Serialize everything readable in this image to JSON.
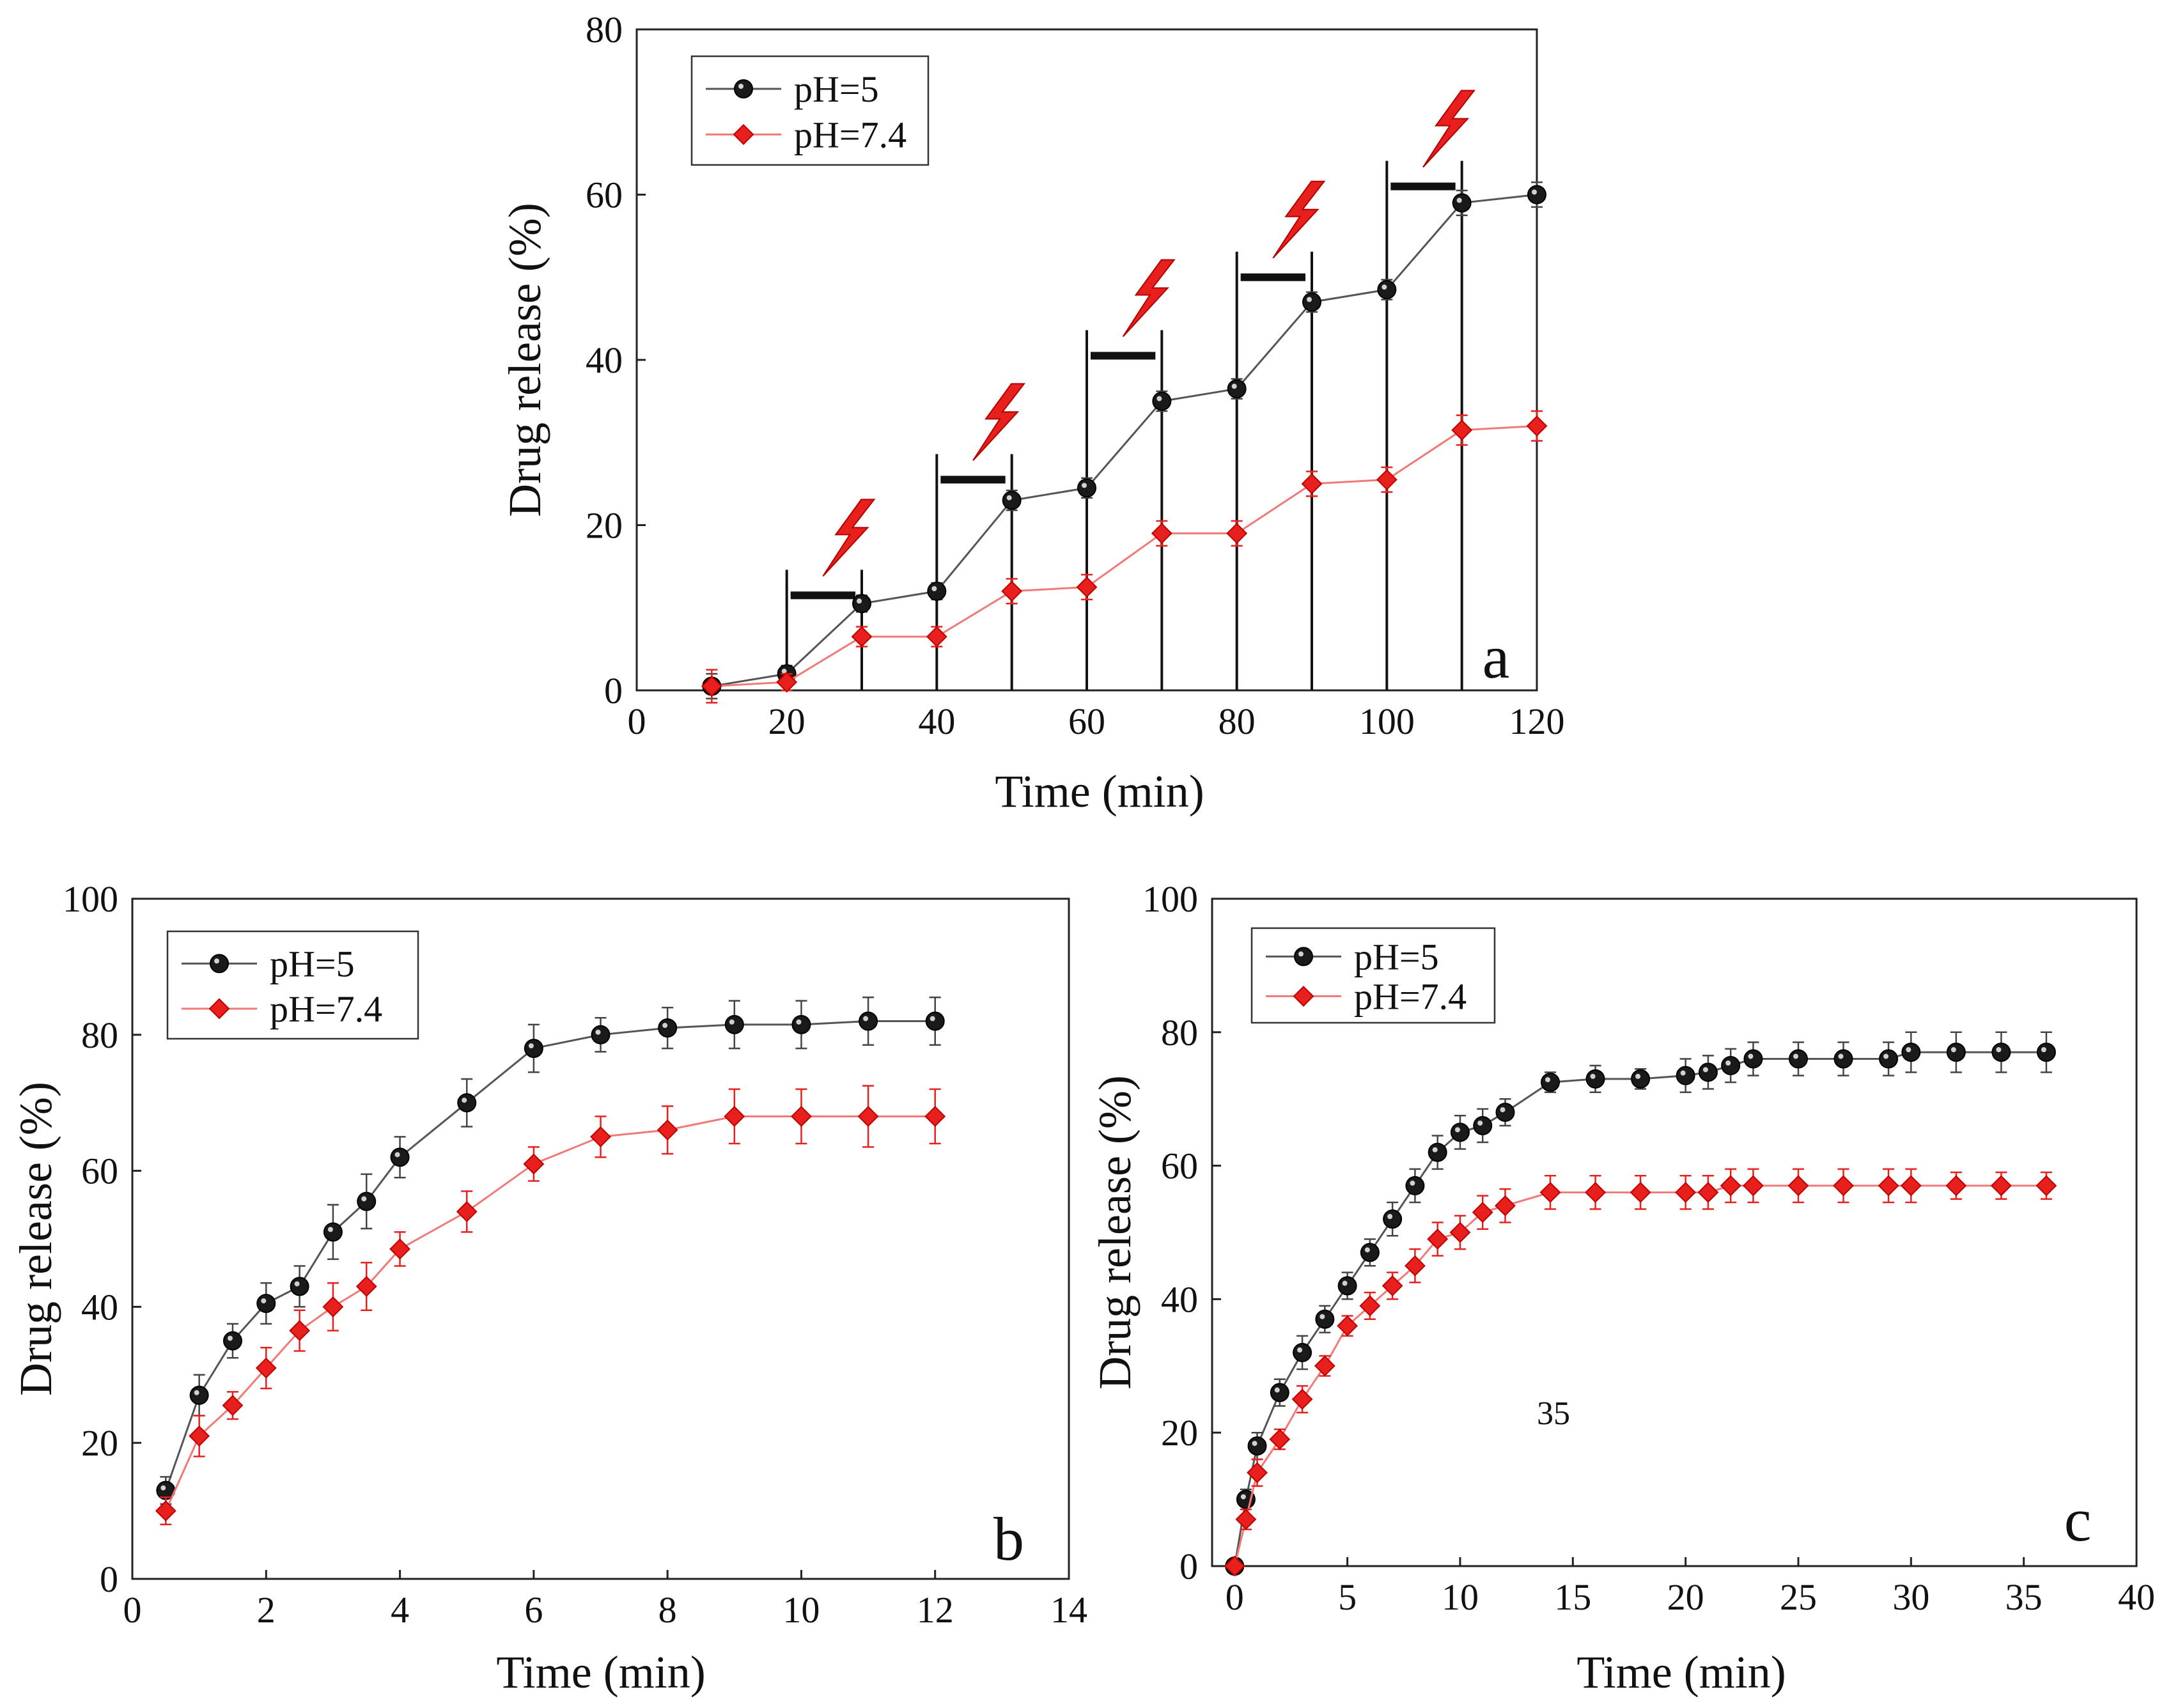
{
  "chart_data": [
    {
      "type": "line",
      "panel": "a",
      "xlabel": "Time (min)",
      "ylabel": "Drug release (%)",
      "xlim": [
        0,
        120
      ],
      "ylim": [
        0,
        80
      ],
      "xticks": [
        0,
        20,
        40,
        60,
        80,
        100,
        120
      ],
      "yticks": [
        0,
        20,
        40,
        60,
        80
      ],
      "grid": false,
      "legend_position": "top-left",
      "series": [
        {
          "name": "pH=5",
          "color": "#1a1a1a",
          "marker": "circle",
          "x": [
            10,
            20,
            30,
            40,
            50,
            60,
            70,
            80,
            90,
            100,
            110,
            120
          ],
          "values": [
            0.5,
            2,
            10.5,
            12,
            23,
            24.5,
            35,
            36.5,
            47,
            48.5,
            59,
            60
          ],
          "errors": [
            1.5,
            1,
            1,
            1,
            1.2,
            1.2,
            1.2,
            1.2,
            1.2,
            1.2,
            1.5,
            1.5
          ]
        },
        {
          "name": "pH=7.4",
          "color": "#e8201d",
          "marker": "diamond",
          "x": [
            10,
            20,
            30,
            40,
            50,
            60,
            70,
            80,
            90,
            100,
            110,
            120
          ],
          "values": [
            0.5,
            1,
            6.5,
            6.5,
            12,
            12.5,
            19,
            19,
            25,
            25.5,
            31.5,
            32
          ],
          "errors": [
            2,
            1,
            1.2,
            1.2,
            1.5,
            1.5,
            1.5,
            1.5,
            1.5,
            1.5,
            1.8,
            1.8
          ]
        }
      ],
      "irradiation_windows": [
        {
          "start": 20,
          "end": 30,
          "bar_level": 11.5
        },
        {
          "start": 40,
          "end": 50,
          "bar_level": 25.5
        },
        {
          "start": 60,
          "end": 70,
          "bar_level": 40.5
        },
        {
          "start": 80,
          "end": 90,
          "bar_level": 50
        },
        {
          "start": 100,
          "end": 110,
          "bar_level": 61
        }
      ],
      "laser_icon": "lightning-bolt-icon",
      "panel_label": "a"
    },
    {
      "type": "line",
      "panel": "b",
      "xlabel": "Time (min)",
      "ylabel": "Drug release (%)",
      "xlim": [
        0,
        14
      ],
      "ylim": [
        0,
        100
      ],
      "xticks": [
        0,
        2,
        4,
        6,
        8,
        10,
        12,
        14
      ],
      "yticks": [
        0,
        20,
        40,
        60,
        80,
        100
      ],
      "grid": false,
      "legend_position": "top-left",
      "series": [
        {
          "name": "pH=5",
          "color": "#1a1a1a",
          "marker": "circle",
          "x": [
            0.5,
            1,
            1.5,
            2,
            2.5,
            3,
            3.5,
            4,
            5,
            6,
            7,
            8,
            9,
            10,
            11,
            12
          ],
          "values": [
            13,
            27,
            35,
            40.5,
            43,
            51,
            55.5,
            62,
            70,
            78,
            80,
            81,
            81.5,
            81.5,
            82,
            82
          ],
          "errors": [
            2,
            3,
            2.5,
            3,
            3,
            4,
            4,
            3,
            3.5,
            3.5,
            2.5,
            3,
            3.5,
            3.5,
            3.5,
            3.5
          ]
        },
        {
          "name": "pH=7.4",
          "color": "#e8201d",
          "marker": "diamond",
          "x": [
            0.5,
            1,
            1.5,
            2,
            2.5,
            3,
            3.5,
            4,
            5,
            6,
            7,
            8,
            9,
            10,
            11,
            12
          ],
          "values": [
            10,
            21,
            25.5,
            31,
            36.5,
            40,
            43,
            48.5,
            54,
            61,
            65,
            66,
            68,
            68,
            68,
            68
          ],
          "errors": [
            2,
            3,
            2,
            3,
            3,
            3.5,
            3.5,
            2.5,
            3,
            2.5,
            3,
            3.5,
            4,
            4,
            4.5,
            4
          ]
        }
      ],
      "panel_label": "b"
    },
    {
      "type": "line",
      "panel": "c",
      "xlabel": "Time (min)",
      "ylabel": "Drug release (%)",
      "xlim": [
        -1,
        40
      ],
      "ylim": [
        0,
        100
      ],
      "xticks": [
        0,
        5,
        10,
        15,
        20,
        25,
        30,
        35,
        40
      ],
      "yticks": [
        0,
        20,
        40,
        60,
        80,
        100
      ],
      "grid": false,
      "legend_position": "top-left",
      "series": [
        {
          "name": "pH=5",
          "color": "#1a1a1a",
          "marker": "circle",
          "x": [
            0,
            0.5,
            1,
            2,
            3,
            4,
            5,
            6,
            7,
            8,
            9,
            10,
            11,
            12,
            14,
            16,
            18,
            20,
            21,
            22,
            23,
            25,
            27,
            29,
            30,
            32,
            34,
            36
          ],
          "values": [
            0,
            10,
            18,
            26,
            32,
            37,
            42,
            47,
            52,
            57,
            62,
            65,
            66,
            68,
            72.5,
            73,
            73,
            73.5,
            74,
            75,
            76,
            76,
            76,
            76,
            77,
            77,
            77,
            77
          ],
          "errors": [
            0.5,
            1.5,
            2,
            2,
            2.5,
            2,
            2,
            2,
            2.5,
            2.5,
            2.5,
            2.5,
            2.5,
            2,
            1.5,
            2,
            1.5,
            2.5,
            2.5,
            2.5,
            2.5,
            2.5,
            2.5,
            2.5,
            3,
            3,
            3,
            3
          ]
        },
        {
          "name": "pH=7.4",
          "color": "#e8201d",
          "marker": "diamond",
          "x": [
            0,
            0.5,
            1,
            2,
            3,
            4,
            5,
            6,
            7,
            8,
            9,
            10,
            11,
            12,
            14,
            16,
            18,
            20,
            21,
            22,
            23,
            25,
            27,
            29,
            30,
            32,
            34,
            36
          ],
          "values": [
            0,
            7,
            14,
            19,
            25,
            30,
            36,
            39,
            42,
            45,
            49,
            50,
            53,
            54,
            56,
            56,
            56,
            56,
            56,
            57,
            57,
            57,
            57,
            57,
            57,
            57,
            57,
            57
          ],
          "errors": [
            0.5,
            1.5,
            2,
            1.5,
            2,
            1.5,
            1.5,
            2,
            2,
            2.5,
            2.5,
            2.5,
            2.5,
            2.5,
            2.5,
            2.5,
            2.5,
            2.5,
            2.5,
            2.5,
            2.5,
            2.5,
            2.5,
            2.5,
            2.5,
            2,
            2,
            2
          ]
        }
      ],
      "annotation_text": "35",
      "panel_label": "c"
    }
  ]
}
